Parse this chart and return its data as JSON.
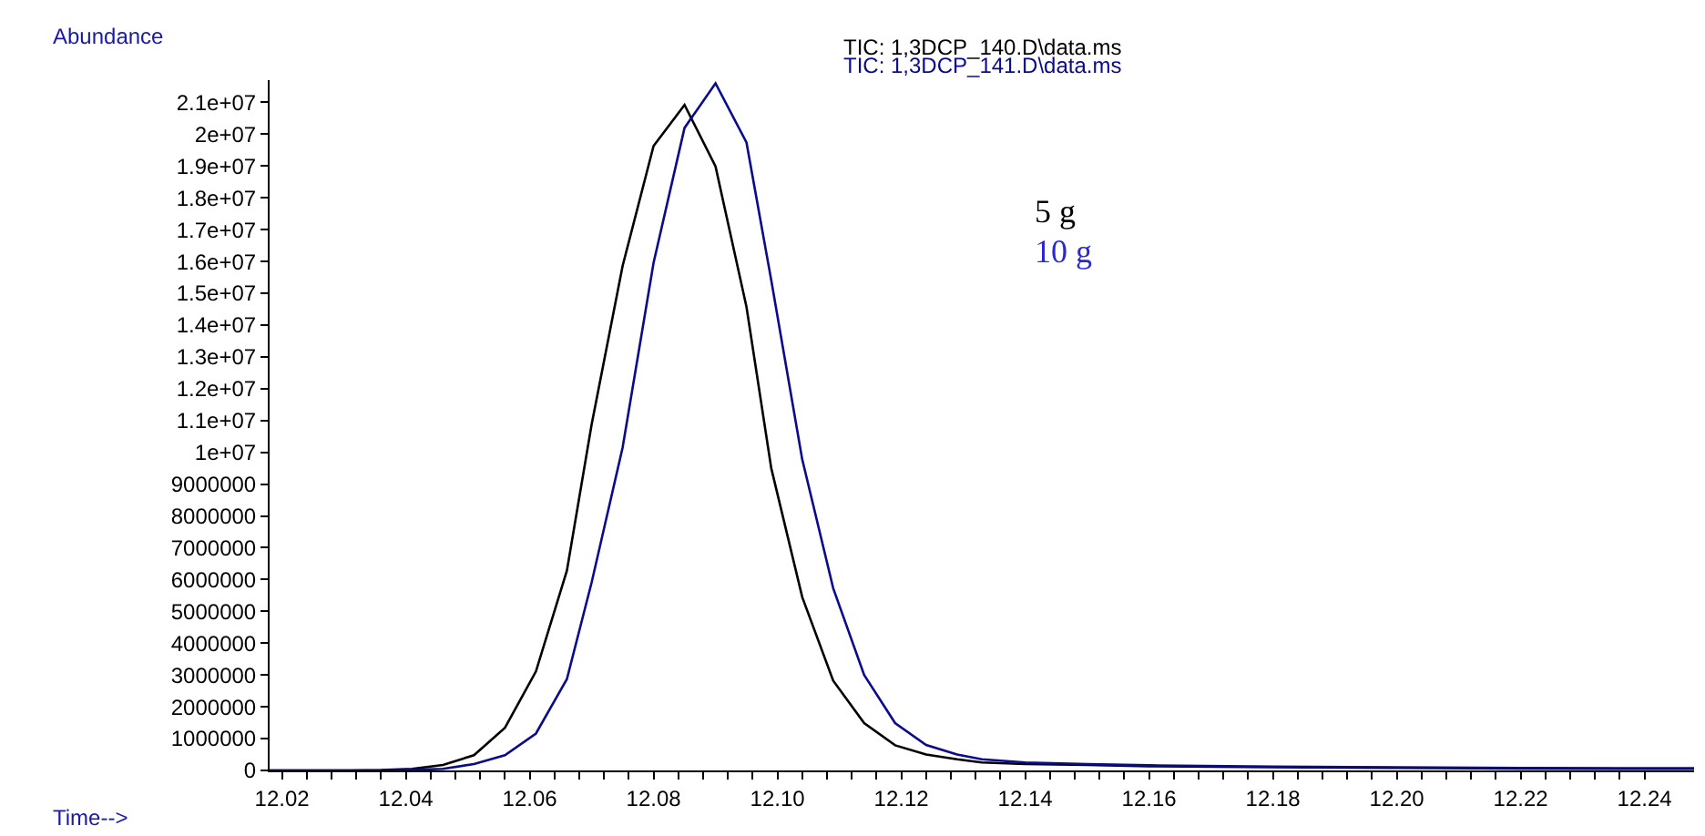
{
  "chart_data": {
    "type": "line",
    "xlabel": "Time-->",
    "ylabel": "Abundance",
    "legend": "top",
    "marker": "none",
    "line_style": "solid",
    "xlim": [
      12.018,
      12.248
    ],
    "ylim": [
      0,
      21700000
    ],
    "xticks": [
      {
        "value": 12.02,
        "label": "12.02"
      },
      {
        "value": 12.024,
        "label": null
      },
      {
        "value": 12.028,
        "label": null
      },
      {
        "value": 12.032,
        "label": null
      },
      {
        "value": 12.036,
        "label": null
      },
      {
        "value": 12.04,
        "label": "12.04"
      },
      {
        "value": 12.044,
        "label": null
      },
      {
        "value": 12.048,
        "label": null
      },
      {
        "value": 12.052,
        "label": null
      },
      {
        "value": 12.056,
        "label": null
      },
      {
        "value": 12.06,
        "label": "12.06"
      },
      {
        "value": 12.064,
        "label": null
      },
      {
        "value": 12.068,
        "label": null
      },
      {
        "value": 12.072,
        "label": null
      },
      {
        "value": 12.076,
        "label": null
      },
      {
        "value": 12.08,
        "label": "12.08"
      },
      {
        "value": 12.084,
        "label": null
      },
      {
        "value": 12.088,
        "label": null
      },
      {
        "value": 12.092,
        "label": null
      },
      {
        "value": 12.096,
        "label": null
      },
      {
        "value": 12.1,
        "label": "12.10"
      },
      {
        "value": 12.104,
        "label": null
      },
      {
        "value": 12.108,
        "label": null
      },
      {
        "value": 12.112,
        "label": null
      },
      {
        "value": 12.116,
        "label": null
      },
      {
        "value": 12.12,
        "label": "12.12"
      },
      {
        "value": 12.124,
        "label": null
      },
      {
        "value": 12.128,
        "label": null
      },
      {
        "value": 12.132,
        "label": null
      },
      {
        "value": 12.136,
        "label": null
      },
      {
        "value": 12.14,
        "label": "12.14"
      },
      {
        "value": 12.144,
        "label": null
      },
      {
        "value": 12.148,
        "label": null
      },
      {
        "value": 12.152,
        "label": null
      },
      {
        "value": 12.156,
        "label": null
      },
      {
        "value": 12.16,
        "label": "12.16"
      },
      {
        "value": 12.164,
        "label": null
      },
      {
        "value": 12.168,
        "label": null
      },
      {
        "value": 12.172,
        "label": null
      },
      {
        "value": 12.176,
        "label": null
      },
      {
        "value": 12.18,
        "label": "12.18"
      },
      {
        "value": 12.184,
        "label": null
      },
      {
        "value": 12.188,
        "label": null
      },
      {
        "value": 12.192,
        "label": null
      },
      {
        "value": 12.196,
        "label": null
      },
      {
        "value": 12.2,
        "label": "12.20"
      },
      {
        "value": 12.204,
        "label": null
      },
      {
        "value": 12.208,
        "label": null
      },
      {
        "value": 12.212,
        "label": null
      },
      {
        "value": 12.216,
        "label": null
      },
      {
        "value": 12.22,
        "label": "12.22"
      },
      {
        "value": 12.224,
        "label": null
      },
      {
        "value": 12.228,
        "label": null
      },
      {
        "value": 12.232,
        "label": null
      },
      {
        "value": 12.236,
        "label": null
      },
      {
        "value": 12.24,
        "label": "12.24"
      }
    ],
    "yticks": [
      0,
      1000000,
      2000000,
      3000000,
      4000000,
      5000000,
      6000000,
      7000000,
      8000000,
      9000000,
      {
        "value": 10000000,
        "label": "1e+07"
      },
      {
        "value": 11000000,
        "label": "1.1e+07"
      },
      {
        "value": 12000000,
        "label": "1.2e+07"
      },
      {
        "value": 13000000,
        "label": "1.3e+07"
      },
      {
        "value": 14000000,
        "label": "1.4e+07"
      },
      {
        "value": 15000000,
        "label": "1.5e+07"
      },
      {
        "value": 16000000,
        "label": "1.6e+07"
      },
      {
        "value": 17000000,
        "label": "1.7e+07"
      },
      {
        "value": 18000000,
        "label": "1.8e+07"
      },
      {
        "value": 19000000,
        "label": "1.9e+07"
      },
      {
        "value": 20000000,
        "label": "2e+07"
      },
      {
        "value": 21000000,
        "label": "2.1e+07"
      }
    ],
    "x": [
      12.018,
      12.026,
      12.031,
      12.036,
      12.041,
      12.046,
      12.051,
      12.056,
      12.061,
      12.066,
      12.07,
      12.075,
      12.08,
      12.085,
      12.09,
      12.095,
      12.099,
      12.104,
      12.109,
      12.114,
      12.119,
      12.124,
      12.129,
      12.133,
      12.14,
      12.15,
      12.16,
      12.18,
      12.2,
      12.22,
      12.24,
      12.248
    ],
    "series": [
      {
        "name": "TIC: 1,3DCP_140.D\\data.ms",
        "color": "#000000",
        "values": [
          0,
          0,
          0,
          10000,
          50000,
          170000,
          480000,
          1340000,
          3110000,
          6280000,
          10880000,
          15860000,
          19630000,
          20920000,
          18990000,
          14570000,
          9500000,
          5450000,
          2820000,
          1490000,
          790000,
          500000,
          350000,
          250000,
          200000,
          170000,
          130000,
          100000,
          80000,
          60000,
          50000,
          50000
        ]
      },
      {
        "name": "TIC: 1,3DCP_141.D\\data.ms",
        "color": "#0a0a8c",
        "values": [
          0,
          0,
          0,
          0,
          20000,
          50000,
          200000,
          480000,
          1160000,
          2870000,
          5910000,
          10150000,
          15960000,
          20200000,
          21600000,
          19740000,
          15410000,
          9780000,
          5730000,
          3000000,
          1490000,
          800000,
          500000,
          350000,
          250000,
          200000,
          160000,
          120000,
          100000,
          80000,
          70000,
          70000
        ]
      }
    ],
    "annotations": [
      "5 g",
      "10 g"
    ]
  }
}
